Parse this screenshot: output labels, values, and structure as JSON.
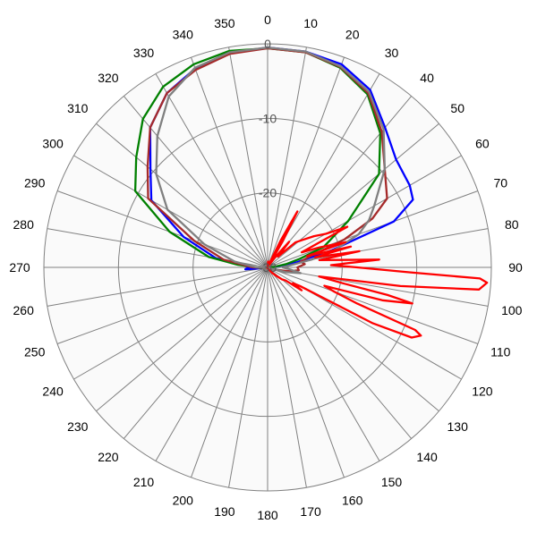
{
  "chart_data": {
    "type": "line",
    "subtype": "polar",
    "angle_unit": "degrees",
    "angle_zero": "top",
    "angle_direction": "clockwise",
    "angle_ticks": [
      0,
      10,
      20,
      30,
      40,
      50,
      60,
      70,
      80,
      90,
      100,
      110,
      120,
      130,
      140,
      150,
      160,
      170,
      180,
      190,
      200,
      210,
      220,
      230,
      240,
      250,
      260,
      270,
      280,
      290,
      300,
      310,
      320,
      330,
      340,
      350
    ],
    "radial_ticks": [
      0,
      -10,
      -20,
      -30
    ],
    "radial_range": [
      -30,
      0
    ],
    "radial_tick_labels": [
      "0",
      "-10",
      "-20",
      "-30"
    ],
    "grid": true,
    "legend": "none",
    "background": "#ffffff",
    "plot_background": "#fafafa",
    "grid_color": "#808080",
    "series": [
      {
        "color": "#0000ff",
        "theta": [
          0,
          10,
          20,
          30,
          40,
          50,
          60,
          65,
          70,
          75,
          80,
          85,
          90,
          95,
          100,
          120,
          150,
          180,
          210,
          240,
          260,
          265,
          270,
          275,
          280,
          290,
          300,
          310,
          320,
          330,
          340,
          350,
          360
        ],
        "r": [
          -0.5,
          -0.6,
          -1.0,
          -2.5,
          -5.5,
          -7.5,
          -8.0,
          -8.5,
          -12.0,
          -21.0,
          -26.0,
          -28.8,
          -29.5,
          -29.8,
          -30,
          -30,
          -30,
          -30,
          -30,
          -30,
          -29.5,
          -27.0,
          -27.5,
          -27.0,
          -23.0,
          -18.0,
          -12.0,
          -9.5,
          -5.5,
          -3.0,
          -1.6,
          -0.8,
          -0.5
        ]
      },
      {
        "color": "#008000",
        "theta": [
          0,
          10,
          20,
          30,
          40,
          50,
          60,
          70,
          75,
          80,
          85,
          90,
          95,
          100,
          120,
          150,
          180,
          210,
          240,
          260,
          265,
          270,
          275,
          280,
          290,
          300,
          310,
          320,
          330,
          340,
          350,
          360
        ],
        "r": [
          -0.6,
          -0.7,
          -1.5,
          -3.2,
          -6.5,
          -10.5,
          -17.5,
          -22.0,
          -25.5,
          -27.5,
          -29.0,
          -29.6,
          -29.8,
          -30,
          -30,
          -30,
          -30,
          -30,
          -30,
          -29.5,
          -29.0,
          -28.5,
          -26.0,
          -22.0,
          -16.0,
          -9.5,
          -7.0,
          -4.0,
          -2.0,
          -1.0,
          -0.5,
          -0.6
        ]
      },
      {
        "color": "#a52a2a",
        "theta": [
          0,
          10,
          20,
          30,
          40,
          50,
          60,
          65,
          70,
          75,
          80,
          85,
          90,
          95,
          100,
          105,
          110,
          120,
          150,
          180,
          210,
          240,
          260,
          270,
          280,
          290,
          300,
          310,
          320,
          330,
          340,
          350,
          360
        ],
        "r": [
          -0.6,
          -0.7,
          -1.4,
          -3.0,
          -6.2,
          -9.5,
          -11.5,
          -14.5,
          -19.0,
          -24.0,
          -25.5,
          -25.0,
          -26.0,
          -25.8,
          -27.0,
          -28.5,
          -29.5,
          -30,
          -30,
          -30,
          -30,
          -30,
          -29.5,
          -28.0,
          -24.0,
          -19.5,
          -11.5,
          -9.0,
          -5.5,
          -3.0,
          -1.8,
          -0.9,
          -0.6
        ]
      },
      {
        "color": "#808080",
        "theta": [
          0,
          10,
          20,
          30,
          40,
          50,
          60,
          65,
          70,
          75,
          80,
          85,
          90,
          95,
          100,
          105,
          110,
          120,
          150,
          180,
          210,
          240,
          260,
          270,
          280,
          290,
          300,
          310,
          320,
          330,
          340,
          350,
          360
        ],
        "r": [
          -0.5,
          -0.6,
          -1.3,
          -2.8,
          -5.8,
          -9.5,
          -13.5,
          -15.0,
          -17.0,
          -20.5,
          -24.0,
          -27.0,
          -28.0,
          -27.0,
          -25.5,
          -27.5,
          -29.5,
          -30,
          -30,
          -30,
          -30,
          -30,
          -29.5,
          -28.5,
          -25.5,
          -21.0,
          -14.5,
          -10.5,
          -7.0,
          -3.5,
          -1.5,
          -0.7,
          -0.5
        ]
      },
      {
        "color": "#ff0000",
        "theta": [
          0,
          5,
          8,
          10,
          12,
          14,
          16,
          18,
          20,
          23,
          26,
          28,
          30,
          33,
          36,
          40,
          44,
          48,
          52,
          56,
          60,
          63,
          66,
          69,
          72,
          74,
          76,
          78,
          80,
          82,
          84,
          86,
          88,
          90,
          92,
          93,
          94,
          96,
          98,
          100,
          102,
          103,
          104,
          106,
          108,
          110,
          112,
          113,
          114,
          116,
          118,
          120,
          122,
          124,
          126,
          130,
          135,
          140,
          145,
          150,
          155,
          160,
          170,
          180,
          190,
          200,
          210,
          220,
          230,
          240,
          250,
          260,
          270,
          280,
          290,
          300,
          310,
          320,
          330,
          340,
          350,
          360
        ],
        "r": [
          -30,
          -29.2,
          -29.5,
          -29.9,
          -29.6,
          -29.8,
          -29.9,
          -30,
          -29.8,
          -29.5,
          -26.0,
          -21.5,
          -26.0,
          -29.6,
          -28.5,
          -25.5,
          -28.0,
          -25.0,
          -24.0,
          -22.5,
          -21.0,
          -18.0,
          -25.0,
          -22.5,
          -19.0,
          -24.5,
          -18.5,
          -23.5,
          -17.5,
          -23.0,
          -20.5,
          -15.0,
          -21.5,
          -18.0,
          -11.0,
          -1.5,
          -0.5,
          -1.5,
          -12.0,
          -23.0,
          -19.5,
          -13.5,
          -10.0,
          -14.0,
          -22.0,
          -20.5,
          -17.0,
          -8.5,
          -7.5,
          -8.5,
          -14.0,
          -25.0,
          -26.0,
          -24.5,
          -27.0,
          -27.5,
          -28.5,
          -29.0,
          -29.5,
          -29.6,
          -29.8,
          -29.8,
          -29.9,
          -29.9,
          -29.9,
          -29.9,
          -30,
          -30,
          -30,
          -30,
          -30,
          -30,
          -30,
          -30,
          -30,
          -30,
          -30,
          -30,
          -30,
          -30,
          -30,
          -30
        ]
      }
    ]
  }
}
